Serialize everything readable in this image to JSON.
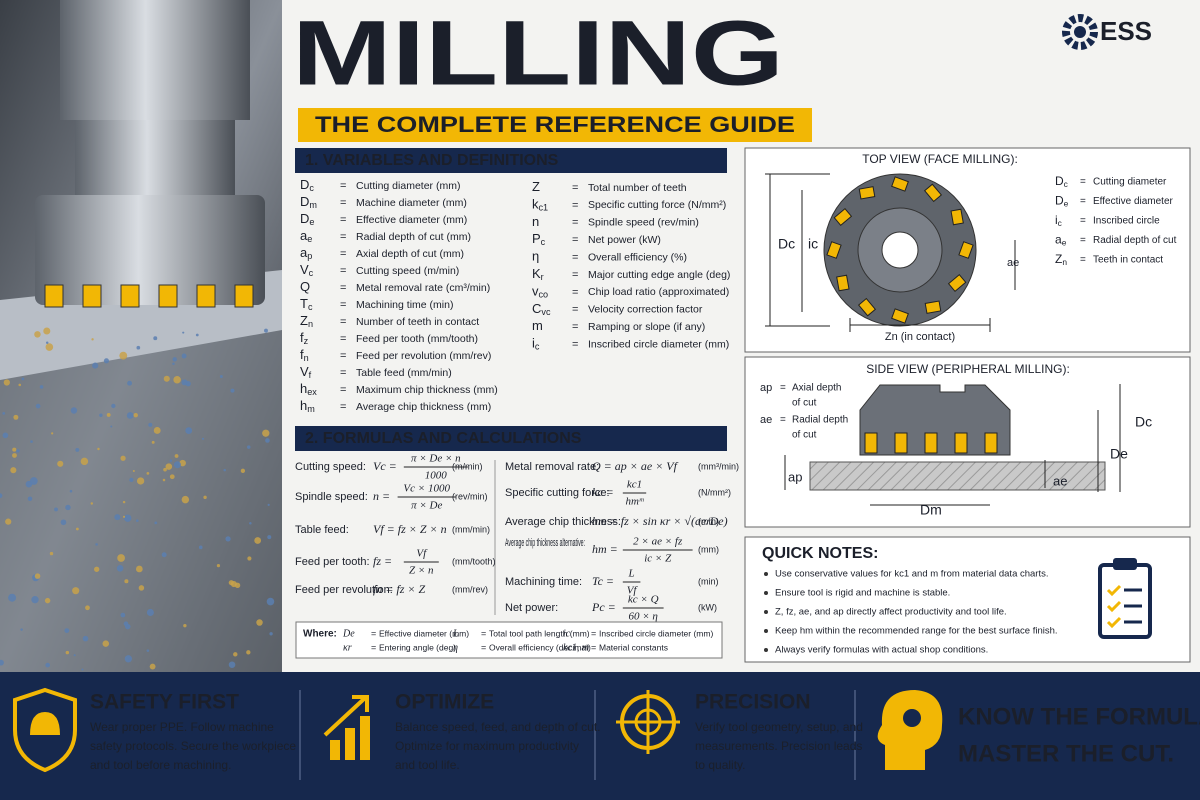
{
  "brand": "ESS",
  "title": "MILLING",
  "subtitle": "THE COMPLETE REFERENCE GUIDE",
  "separator": "=",
  "variables": {
    "heading": "1. VARIABLES AND DEFINITIONS",
    "left": [
      {
        "sym": "D",
        "sub": "c",
        "desc": "Cutting diameter (mm)"
      },
      {
        "sym": "D",
        "sub": "m",
        "desc": "Machine diameter (mm)"
      },
      {
        "sym": "D",
        "sub": "e",
        "desc": "Effective diameter (mm)"
      },
      {
        "sym": "a",
        "sub": "e",
        "desc": "Radial depth of cut (mm)"
      },
      {
        "sym": "a",
        "sub": "p",
        "desc": "Axial depth of cut (mm)"
      },
      {
        "sym": "V",
        "sub": "c",
        "desc": "Cutting speed (m/min)"
      },
      {
        "sym": "Q",
        "desc": "Metal removal rate (cm³/min)"
      },
      {
        "sym": "T",
        "sub": "c",
        "desc": "Machining time (min)"
      },
      {
        "sym": "Z",
        "sub": "n",
        "desc": "Number of teeth in contact"
      },
      {
        "sym": "f",
        "sub": "z",
        "desc": "Feed per tooth (mm/tooth)"
      },
      {
        "sym": "f",
        "sub": "n",
        "desc": "Feed per revolution (mm/rev)"
      },
      {
        "sym": "V",
        "sub": "f",
        "desc": "Table feed (mm/min)"
      },
      {
        "sym": "h",
        "sub": "ex",
        "desc": "Maximum chip thickness (mm)"
      },
      {
        "sym": "h",
        "sub": "m",
        "desc": "Average chip thickness (mm)"
      }
    ],
    "right": [
      {
        "sym": "Z",
        "desc": "Total number of teeth"
      },
      {
        "sym": "k",
        "sub": "c1",
        "desc": "Specific cutting force (N/mm²)"
      },
      {
        "sym": "n",
        "desc": "Spindle speed (rev/min)"
      },
      {
        "sym": "P",
        "sub": "c",
        "desc": "Net power (kW)"
      },
      {
        "sym": "η",
        "desc": "Overall efficiency (%)"
      },
      {
        "sym": "K",
        "sub": "r",
        "desc": "Major cutting edge angle (deg)"
      },
      {
        "sym": "v",
        "sub": "co",
        "desc": "Chip load ratio (approximated)"
      },
      {
        "sym": "C",
        "sub": "vc",
        "desc": "Velocity correction factor"
      },
      {
        "sym": "m",
        "desc": "Ramping or slope (if any)"
      },
      {
        "sym": "i",
        "sub": "c",
        "desc": "Inscribed circle diameter (mm)"
      }
    ]
  },
  "formulas": {
    "heading": "2. FORMULAS AND CALCULATIONS",
    "left": [
      {
        "label": "Cutting speed:",
        "lhs": "Vc =",
        "num": "π × De × n",
        "den": "1000",
        "unit": "(m/min)"
      },
      {
        "label": "Spindle speed:",
        "lhs": "n =",
        "num": "Vc × 1000",
        "den": "π × De",
        "unit": "(rev/min)"
      },
      {
        "label": "Table feed:",
        "expr": "Vf = fz × Z × n",
        "unit": "(mm/min)"
      },
      {
        "label": "Feed per tooth:",
        "lhs": "fz =",
        "num": "Vf",
        "den": "Z × n",
        "unit": "(mm/tooth)"
      },
      {
        "label": "Feed per revolution:",
        "expr": "fn = fz × Z",
        "unit": "(mm/rev)"
      }
    ],
    "right": [
      {
        "label": "Metal removal rate:",
        "expr": "Q = ap × ae × Vf",
        "unit": "(mm³/min)"
      },
      {
        "label": "Specific cutting force:",
        "lhs": "kc =",
        "num": "kc1",
        "den": "hmᵐ",
        "unit": "(N/mm²)"
      },
      {
        "label": "Average chip thickness:",
        "expr": "hm = fz × sin κr × √(ae/De)",
        "unit": "(mm)"
      },
      {
        "label": "Average chip thickness alternative:",
        "lhs": "hm =",
        "num": "2 × ae × fz",
        "den": "ic × Z",
        "unit": "(mm)"
      },
      {
        "label": "Machining time:",
        "lhs": "Tc =",
        "num": "L",
        "den": "Vf",
        "unit": "(min)"
      },
      {
        "label": "Net power:",
        "lhs": "Pc =",
        "num": "kc × Q",
        "den": "60 × η",
        "unit": "(kW)"
      }
    ],
    "where": {
      "label": "Where:",
      "items": [
        {
          "sym": "De",
          "desc": "Effective diameter (mm)"
        },
        {
          "sym": "L",
          "desc": "Total tool path length (mm)"
        },
        {
          "sym": "ic",
          "desc": "Inscribed circle diameter (mm)"
        },
        {
          "sym": "κr",
          "desc": "Entering angle (deg)"
        },
        {
          "sym": "η",
          "desc": "Overall efficiency (decimal)"
        },
        {
          "sym": "kc1, m",
          "desc": "Material constants"
        }
      ]
    }
  },
  "top_view": {
    "title": "TOP VIEW (FACE MILLING):",
    "dc": "Dc",
    "ic": "ic",
    "ae": "ae",
    "zn": "Zn (in contact)",
    "legend": [
      {
        "sym": "D",
        "sub": "c",
        "desc": "Cutting diameter"
      },
      {
        "sym": "D",
        "sub": "e",
        "desc": "Effective diameter"
      },
      {
        "sym": "i",
        "sub": "c",
        "desc": "Inscribed circle"
      },
      {
        "sym": "a",
        "sub": "e",
        "desc": "Radial depth of cut"
      },
      {
        "sym": "Z",
        "sub": "n",
        "desc": "Teeth in contact"
      }
    ]
  },
  "side_view": {
    "title": "SIDE VIEW (PERIPHERAL MILLING):",
    "notes": [
      {
        "sym": "ap",
        "lines": [
          "Axial depth",
          "of cut"
        ]
      },
      {
        "sym": "ae",
        "lines": [
          "Radial depth",
          "of cut"
        ]
      }
    ],
    "dc": "Dc",
    "de": "De",
    "ap": "ap",
    "ae": "ae",
    "dm": "Dm"
  },
  "quick_notes": {
    "heading": "QUICK NOTES:",
    "items": [
      "Use conservative values for kc1 and m from material data charts.",
      "Ensure tool is rigid and machine is stable.",
      "Z, fz, ae, and ap directly affect productivity and tool life.",
      "Keep hm within the recommended range for the best surface finish.",
      "Always verify formulas with actual shop conditions."
    ]
  },
  "footer": [
    {
      "title": "SAFETY FIRST",
      "text": [
        "Wear proper PPE. Follow machine",
        "safety protocols. Secure the workpiece",
        "and tool before machining."
      ]
    },
    {
      "title": "OPTIMIZE",
      "text": [
        "Balance speed, feed, and depth of cut.",
        "Optimize for maximum productivity",
        "and tool life."
      ]
    },
    {
      "title": "PRECISION",
      "text": [
        "Verify tool geometry, setup, and",
        "measurements. Precision leads",
        "to quality."
      ]
    },
    {
      "text": [
        "KNOW THE FORMULAS.",
        "MASTER THE CUT."
      ]
    }
  ]
}
